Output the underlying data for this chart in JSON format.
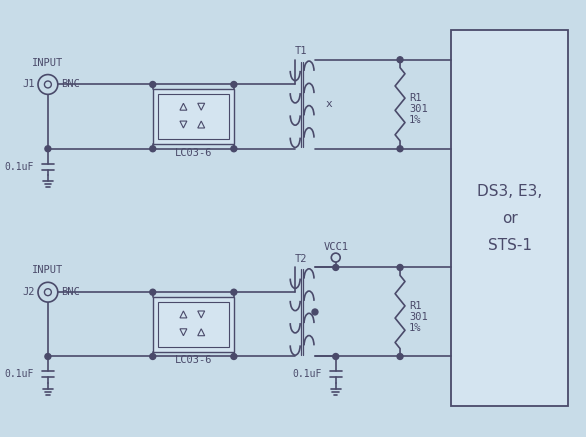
{
  "bg_color": "#c8dce8",
  "line_color": "#4a4a6a",
  "box_color": "#d4e4f0",
  "text_color": "#4a4a6a",
  "circuit1": {
    "label_input": "INPUT",
    "label_j": "J1",
    "label_bnc": "BNC",
    "label_lc": "LC03-6",
    "label_t": "T1",
    "label_r": "R1",
    "label_r2": "301",
    "label_r3": "1%",
    "label_c": "0.1uF"
  },
  "circuit2": {
    "label_input": "INPUT",
    "label_j": "J2",
    "label_bnc": "BNC",
    "label_lc": "LC03-6",
    "label_t": "T2",
    "label_r": "R1",
    "label_r2": "301",
    "label_r3": "1%",
    "label_c1": "0.1uF",
    "label_c2": "0.1uF",
    "label_vcc": "VCC1"
  },
  "box_label": "DS3, E3,\nor\nSTS-1"
}
